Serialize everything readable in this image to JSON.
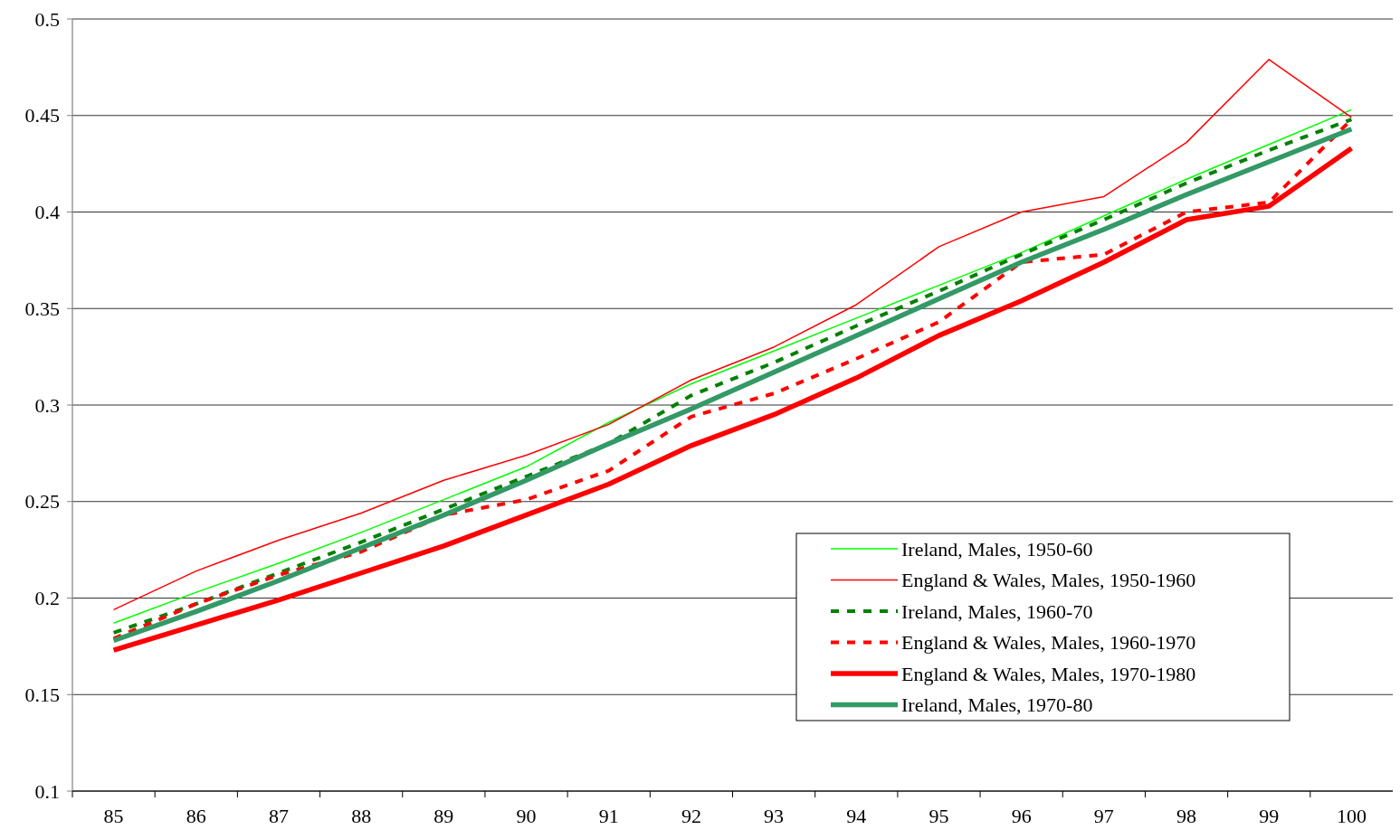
{
  "chart_data": {
    "type": "line",
    "categories": [
      "85",
      "86",
      "87",
      "88",
      "89",
      "90",
      "91",
      "92",
      "93",
      "94",
      "95",
      "96",
      "97",
      "98",
      "99",
      "100"
    ],
    "ylim": [
      0.1,
      0.5
    ],
    "yticks": [
      0.1,
      0.15,
      0.2,
      0.25,
      0.3,
      0.35,
      0.4,
      0.45,
      0.5
    ],
    "grid": "y",
    "legend": "bottom right",
    "marker": "none",
    "series": [
      {
        "name": "Ireland, Males, 1950-60",
        "color": "#00ff00",
        "line_style": "solid",
        "values": [
          0.187,
          0.203,
          0.218,
          0.234,
          0.251,
          0.268,
          0.291,
          0.311,
          0.328,
          0.345,
          0.362,
          0.379,
          0.398,
          0.417,
          0.435,
          0.453
        ]
      },
      {
        "name": "England & Wales, Males, 1950-1960",
        "color": "#ff0000",
        "line_style": "solid",
        "values": [
          0.194,
          0.214,
          0.23,
          0.244,
          0.261,
          0.274,
          0.29,
          0.313,
          0.33,
          0.352,
          0.382,
          0.4,
          0.408,
          0.436,
          0.479,
          0.449
        ]
      },
      {
        "name": "Ireland, Males, 1960-70",
        "color": "#008000",
        "line_style": "dashed",
        "values": [
          0.182,
          0.197,
          0.213,
          0.229,
          0.246,
          0.263,
          0.28,
          0.305,
          0.322,
          0.341,
          0.359,
          0.378,
          0.396,
          0.415,
          0.432,
          0.448
        ]
      },
      {
        "name": "England & Wales, Males, 1960-1970",
        "color": "#ff0000",
        "line_style": "dashed",
        "values": [
          0.179,
          0.197,
          0.212,
          0.224,
          0.243,
          0.251,
          0.266,
          0.294,
          0.306,
          0.324,
          0.343,
          0.374,
          0.378,
          0.4,
          0.405,
          0.448
        ]
      },
      {
        "name": "England & Wales, Males, 1970-1980",
        "color": "#ff0000",
        "line_style": "solid",
        "values": [
          0.173,
          0.186,
          0.199,
          0.213,
          0.227,
          0.243,
          0.259,
          0.279,
          0.295,
          0.314,
          0.336,
          0.354,
          0.374,
          0.396,
          0.403,
          0.433
        ]
      },
      {
        "name": "Ireland, Males, 1970-80",
        "color": "#339966",
        "line_style": "solid",
        "values": [
          0.178,
          0.193,
          0.209,
          0.226,
          0.243,
          0.261,
          0.28,
          0.298,
          0.317,
          0.336,
          0.355,
          0.374,
          0.391,
          0.409,
          0.426,
          0.443
        ]
      }
    ]
  }
}
